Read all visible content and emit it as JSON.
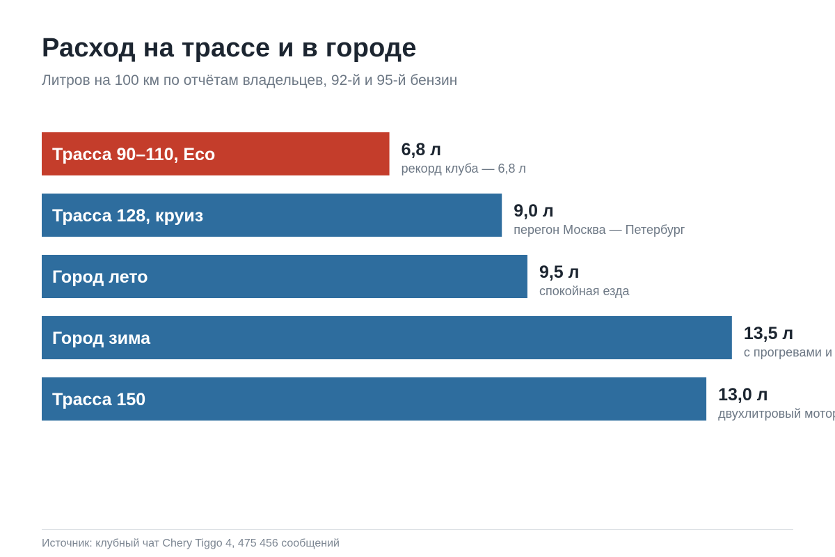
{
  "chart_data": {
    "type": "bar",
    "orientation": "horizontal",
    "title": "Расход на трассе и в городе",
    "subtitle": "Литров на 100 км по отчётам владельцев, 92-й и 95-й бензин",
    "categories": [
      "Трасса 90–110, Eco",
      "Трасса 128, круиз",
      "Город лето",
      "Город зима",
      "Трасса 150"
    ],
    "values": [
      6.8,
      9.0,
      9.5,
      13.5,
      13.0
    ],
    "value_labels": [
      "6,8 л",
      "9,0 л",
      "9,5 л",
      "13,5 л",
      "13,0 л"
    ],
    "notes": [
      "рекорд клуба — 6,8 л",
      "перегон Москва — Петербург",
      "спокойная езда",
      "с прогревами и пробками",
      "двухлитровый мотор"
    ],
    "colors": [
      "#c43d2b",
      "#2e6d9e",
      "#2e6d9e",
      "#2e6d9e",
      "#2e6d9e"
    ],
    "highlight_color": "#c43d2b",
    "bar_color": "#2e6d9e",
    "xlim": [
      0,
      14.7
    ],
    "grid": false,
    "legend": "none"
  },
  "footer": {
    "source": "Источник: клубный чат Chery Tiggo 4, 475 456 сообщений"
  }
}
